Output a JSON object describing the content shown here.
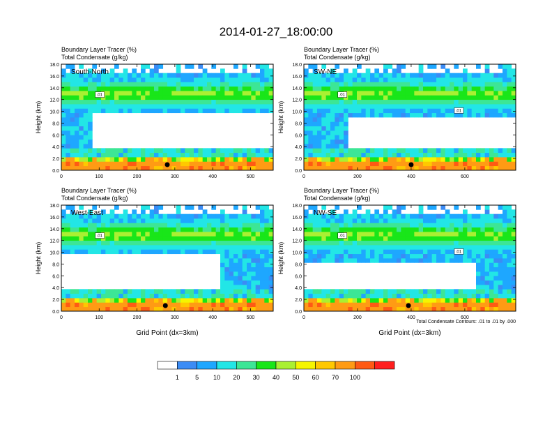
{
  "title": "2014-01-27_18:00:00",
  "panel_header": {
    "line1": "Boundary Layer Tracer   (%)",
    "line2": "Total Condensate   (g/kg)"
  },
  "contour_note": "Total Condensate Contours: .01 to .01 by .000",
  "colorbar": {
    "colors": [
      "#ffffff",
      "#3b8cf5",
      "#1ea7ff",
      "#22e6e6",
      "#3ce696",
      "#19e619",
      "#aaf032",
      "#f5f500",
      "#ffc800",
      "#ff9b14",
      "#ff5a14",
      "#ff1e1e"
    ],
    "tick_labels": [
      "1",
      "5",
      "10",
      "20",
      "30",
      "40",
      "50",
      "60",
      "70",
      "100"
    ]
  },
  "chart_data": [
    {
      "type": "heatmap",
      "panel_label": "South-North",
      "title": "Boundary Layer Tracer (%) / Total Condensate (g/kg)",
      "xlabel": "",
      "ylabel": "Height (km)",
      "xlim": [
        0,
        560
      ],
      "ylim": [
        0,
        18
      ],
      "xticks": [
        "0",
        "100",
        "200",
        "300",
        "400",
        "500"
      ],
      "yticks": [
        "0.0",
        "2.0",
        "4.0",
        "6.0",
        "8.0",
        "10.0",
        "12.0",
        "14.0",
        "16.0",
        "18.0"
      ],
      "contour_labels": [
        ".01"
      ],
      "marker_x": 280,
      "cloud_free_gap": {
        "x_start": 80,
        "x_end": 560,
        "z_bottom": 4,
        "z_top": 10
      }
    },
    {
      "type": "heatmap",
      "panel_label": "SW-NE",
      "title": "Boundary Layer Tracer (%) / Total Condensate (g/kg)",
      "xlabel": "",
      "ylabel": "Height (km)",
      "xlim": [
        0,
        790
      ],
      "ylim": [
        0,
        18
      ],
      "xticks": [
        "0",
        "200",
        "400",
        "600"
      ],
      "yticks": [
        "0.0",
        "2.0",
        "4.0",
        "6.0",
        "8.0",
        "10.0",
        "12.0",
        "14.0",
        "16.0",
        "18.0"
      ],
      "contour_labels": [
        ".01",
        ".01"
      ],
      "marker_x": 400,
      "cloud_free_gap": {
        "x_start": 160,
        "x_end": 790,
        "z_bottom": 4,
        "z_top": 9
      }
    },
    {
      "type": "heatmap",
      "panel_label": "West-East",
      "title": "Boundary Layer Tracer (%) / Total Condensate (g/kg)",
      "xlabel": "Grid Point (dx=3km)",
      "ylabel": "Height (km)",
      "xlim": [
        0,
        560
      ],
      "ylim": [
        0,
        18
      ],
      "xticks": [
        "0",
        "100",
        "200",
        "300",
        "400",
        "500"
      ],
      "yticks": [
        "0.0",
        "2.0",
        "4.0",
        "6.0",
        "8.0",
        "10.0",
        "12.0",
        "14.0",
        "16.0",
        "18.0"
      ],
      "contour_labels": [
        ".01"
      ],
      "marker_x": 275,
      "cloud_free_gap": {
        "x_start": 0,
        "x_end": 420,
        "z_bottom": 4,
        "z_top": 10
      }
    },
    {
      "type": "heatmap",
      "panel_label": "NW-SE",
      "title": "Boundary Layer Tracer (%) / Total Condensate (g/kg)",
      "xlabel": "Grid Point (dx=3km)",
      "ylabel": "Height (km)",
      "xlim": [
        0,
        790
      ],
      "ylim": [
        0,
        18
      ],
      "xticks": [
        "0",
        "200",
        "400",
        "600"
      ],
      "yticks": [
        "0.0",
        "2.0",
        "4.0",
        "6.0",
        "8.0",
        "10.0",
        "12.0",
        "14.0",
        "16.0",
        "18.0"
      ],
      "contour_labels": [
        ".01",
        ".01"
      ],
      "marker_x": 390,
      "cloud_free_gap": {
        "x_start": 0,
        "x_end": 640,
        "z_bottom": 4,
        "z_top": 8
      }
    }
  ]
}
